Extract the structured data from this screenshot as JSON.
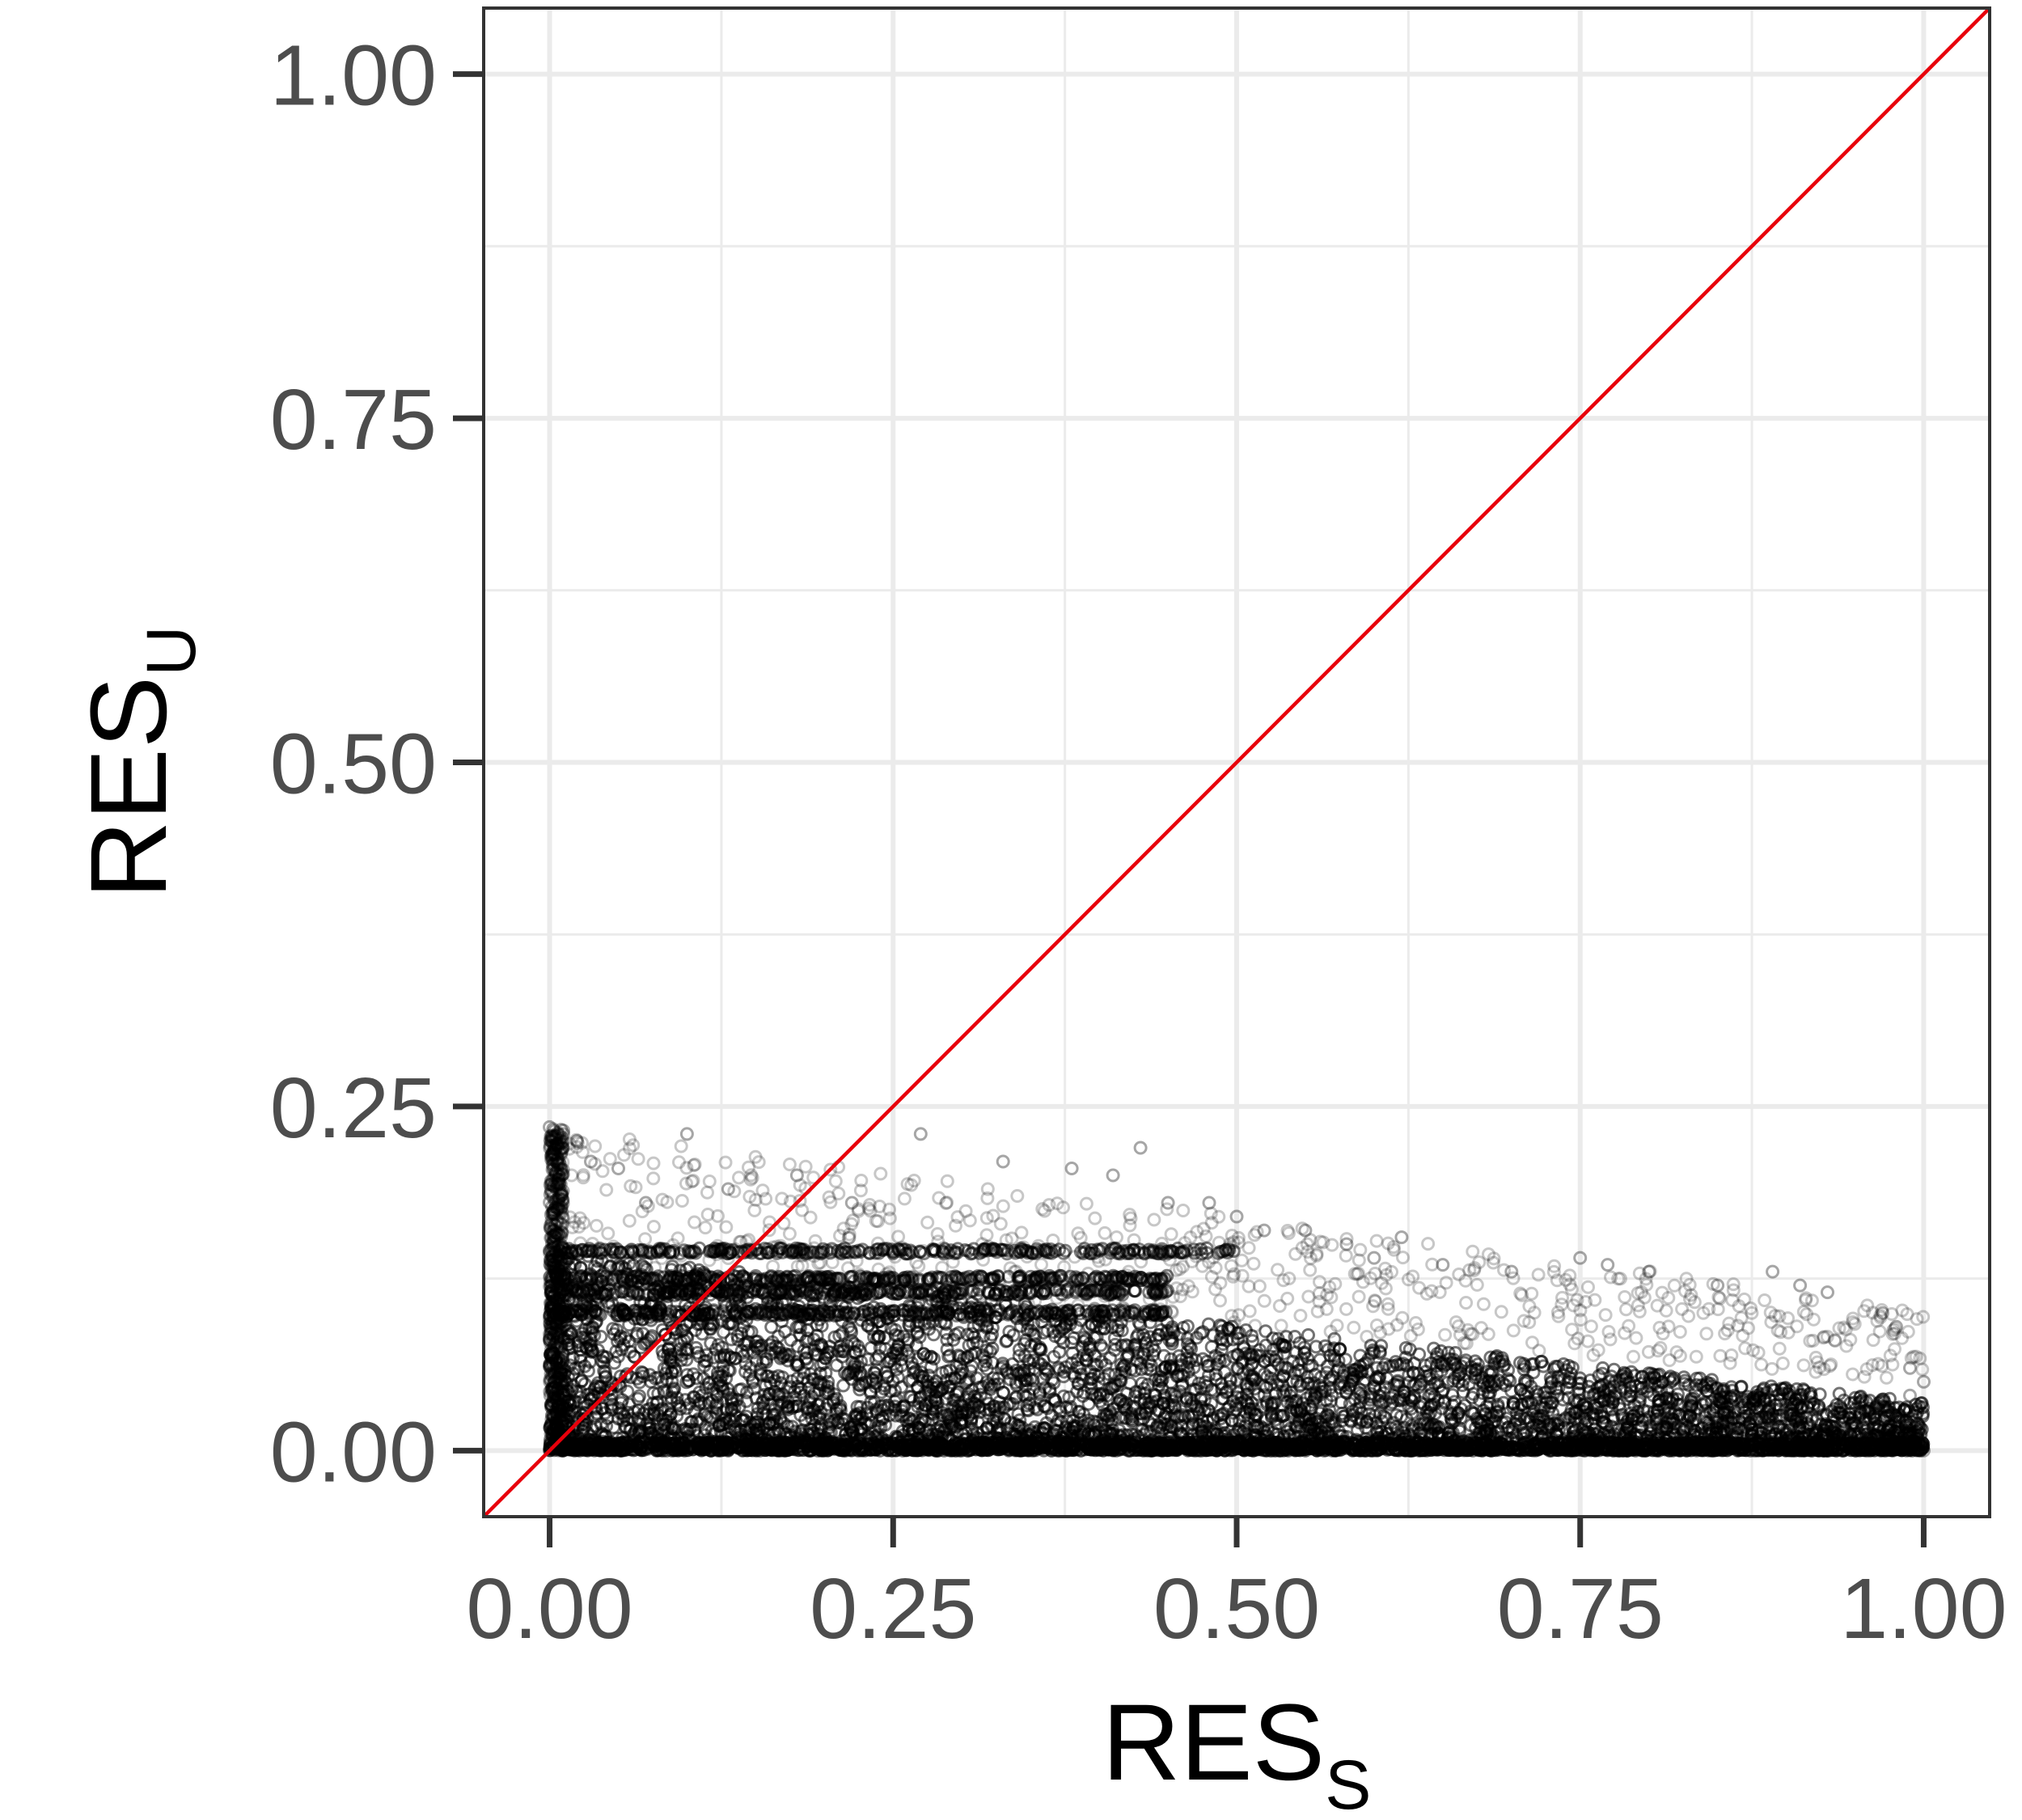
{
  "chart_data": {
    "type": "scatter",
    "title": "",
    "xlabel": {
      "main": "RES",
      "subscript": "S"
    },
    "ylabel": {
      "main": "RES",
      "subscript": "U"
    },
    "xlim": [
      -0.048,
      1.048
    ],
    "ylim": [
      -0.048,
      1.048
    ],
    "x_ticks": [
      0.0,
      0.25,
      0.5,
      0.75,
      1.0
    ],
    "x_tick_labels": [
      "0.00",
      "0.25",
      "0.50",
      "0.75",
      "1.00"
    ],
    "y_ticks": [
      0.0,
      0.25,
      0.5,
      0.75,
      1.0
    ],
    "y_tick_labels": [
      "0.00",
      "0.25",
      "0.50",
      "0.75",
      "1.00"
    ],
    "grid": true,
    "reference_line": {
      "type": "identity",
      "from": [
        0,
        0
      ],
      "to": [
        1,
        1
      ],
      "color": "#e8000b"
    },
    "point_color": "#000000",
    "point_style": "semi-transparent open circles",
    "series": [
      {
        "points": [
          [
            0.0,
            0.235
          ],
          [
            0.01,
            0.23
          ],
          [
            0.02,
            0.225
          ],
          [
            0.03,
            0.21
          ],
          [
            0.05,
            0.205
          ],
          [
            0.07,
            0.18
          ],
          [
            0.1,
            0.23
          ],
          [
            0.13,
            0.19
          ],
          [
            0.18,
            0.2
          ],
          [
            0.22,
            0.18
          ],
          [
            0.27,
            0.23
          ],
          [
            0.33,
            0.21
          ],
          [
            0.38,
            0.205
          ],
          [
            0.41,
            0.2
          ],
          [
            0.43,
            0.22
          ],
          [
            0.45,
            0.18
          ],
          [
            0.48,
            0.18
          ],
          [
            0.5,
            0.17
          ],
          [
            0.52,
            0.16
          ],
          [
            0.55,
            0.16
          ],
          [
            0.58,
            0.15
          ],
          [
            0.6,
            0.14
          ],
          [
            0.62,
            0.155
          ],
          [
            0.65,
            0.135
          ],
          [
            0.7,
            0.13
          ],
          [
            0.75,
            0.14
          ],
          [
            0.77,
            0.135
          ],
          [
            0.8,
            0.13
          ],
          [
            0.85,
            0.12
          ],
          [
            0.89,
            0.13
          ],
          [
            0.91,
            0.12
          ],
          [
            0.93,
            0.115
          ],
          [
            0.97,
            0.1
          ],
          [
            0.98,
            0.09
          ],
          [
            0.99,
            0.06
          ],
          [
            0.99,
            0.04
          ],
          [
            1.0,
            0.05
          ],
          [
            1.0,
            0.0
          ]
        ],
        "horizontal_bands_y": [
          0.145,
          0.125,
          0.115,
          0.1
        ],
        "dense_region": "x 0.00–1.00, y 0.00–0.15, densest near x 0.00–0.50"
      }
    ]
  }
}
